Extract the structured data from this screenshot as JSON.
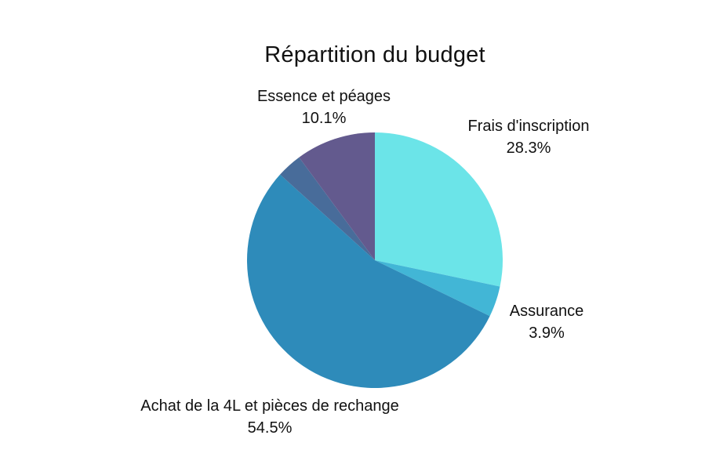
{
  "chart_data": {
    "type": "pie",
    "title": "Répartition du budget",
    "start_angle_deg": 90,
    "direction": "clockwise",
    "slices": [
      {
        "label": "Frais d'inscription",
        "value": 28.3,
        "display": "28.3%",
        "color": "#6BE4E8",
        "show_label": true
      },
      {
        "label": "Assurance",
        "value": 3.9,
        "display": "3.9%",
        "color": "#42B6D6",
        "show_label": true
      },
      {
        "label": "Achat de la 4L et pièces de rechange",
        "value": 54.5,
        "display": "54.5%",
        "color": "#2E8BBA",
        "show_label": true
      },
      {
        "label": "",
        "value": 3.2,
        "display": "",
        "color": "#486C9A",
        "show_label": false
      },
      {
        "label": "Essence et péages",
        "value": 10.1,
        "display": "10.1%",
        "color": "#635A8E",
        "show_label": true
      }
    ]
  }
}
